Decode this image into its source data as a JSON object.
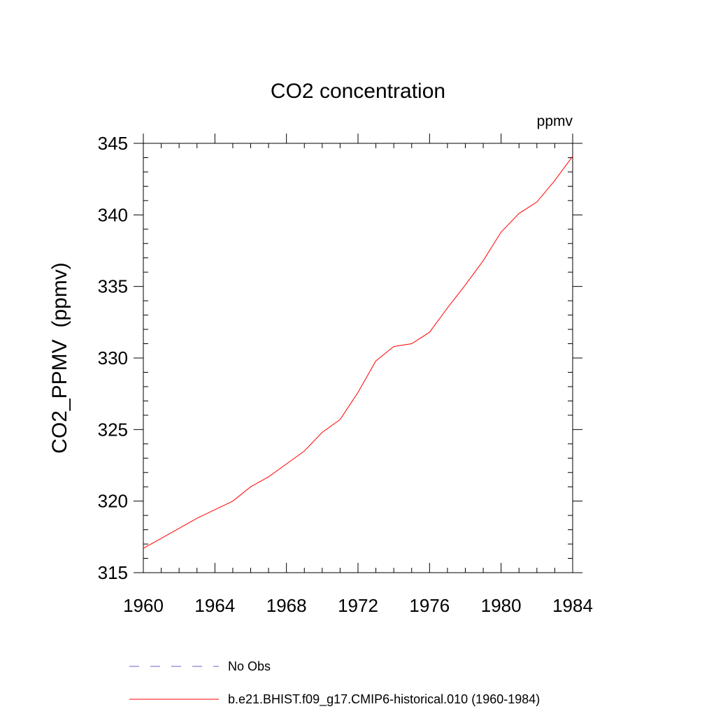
{
  "chart_data": {
    "type": "line",
    "title": "CO2 concentration",
    "units_label": "ppmv",
    "ylabel": "CO2_PPMV  (ppmv)",
    "xlabel": "",
    "xlim": [
      1960,
      1984
    ],
    "ylim": [
      315,
      345
    ],
    "x_ticks": [
      1960,
      1964,
      1968,
      1972,
      1976,
      1980,
      1984
    ],
    "x_tick_labels": [
      "1960",
      "1964",
      "1968",
      "1972",
      "1976",
      "1980",
      "1984"
    ],
    "y_ticks": [
      315,
      320,
      325,
      330,
      335,
      340,
      345
    ],
    "y_tick_labels": [
      "315",
      "320",
      "325",
      "330",
      "335",
      "340",
      "345"
    ],
    "grid": false,
    "legend_position": "bottom",
    "series": [
      {
        "name": "b.e21.BHIST.f09_g17.CMIP6-historical.010 (1960-1984)",
        "color": "#ff0000",
        "style": "solid",
        "x": [
          1960,
          1961,
          1962,
          1963,
          1964,
          1965,
          1966,
          1967,
          1968,
          1969,
          1970,
          1971,
          1972,
          1973,
          1974,
          1975,
          1976,
          1977,
          1978,
          1979,
          1980,
          1981,
          1982,
          1983,
          1984
        ],
        "values": [
          316.7,
          317.4,
          318.1,
          318.8,
          319.4,
          320.0,
          321.0,
          321.7,
          322.6,
          323.5,
          324.8,
          325.7,
          327.6,
          329.8,
          330.8,
          331.0,
          331.8,
          333.5,
          335.1,
          336.8,
          338.8,
          340.1,
          340.9,
          342.4,
          344.1
        ]
      }
    ],
    "legend": [
      {
        "name": "No Obs",
        "color": "#6666cc",
        "style": "dashed"
      },
      {
        "name": "b.e21.BHIST.f09_g17.CMIP6-historical.010 (1960-1984)",
        "color": "#ff0000",
        "style": "solid"
      }
    ]
  }
}
